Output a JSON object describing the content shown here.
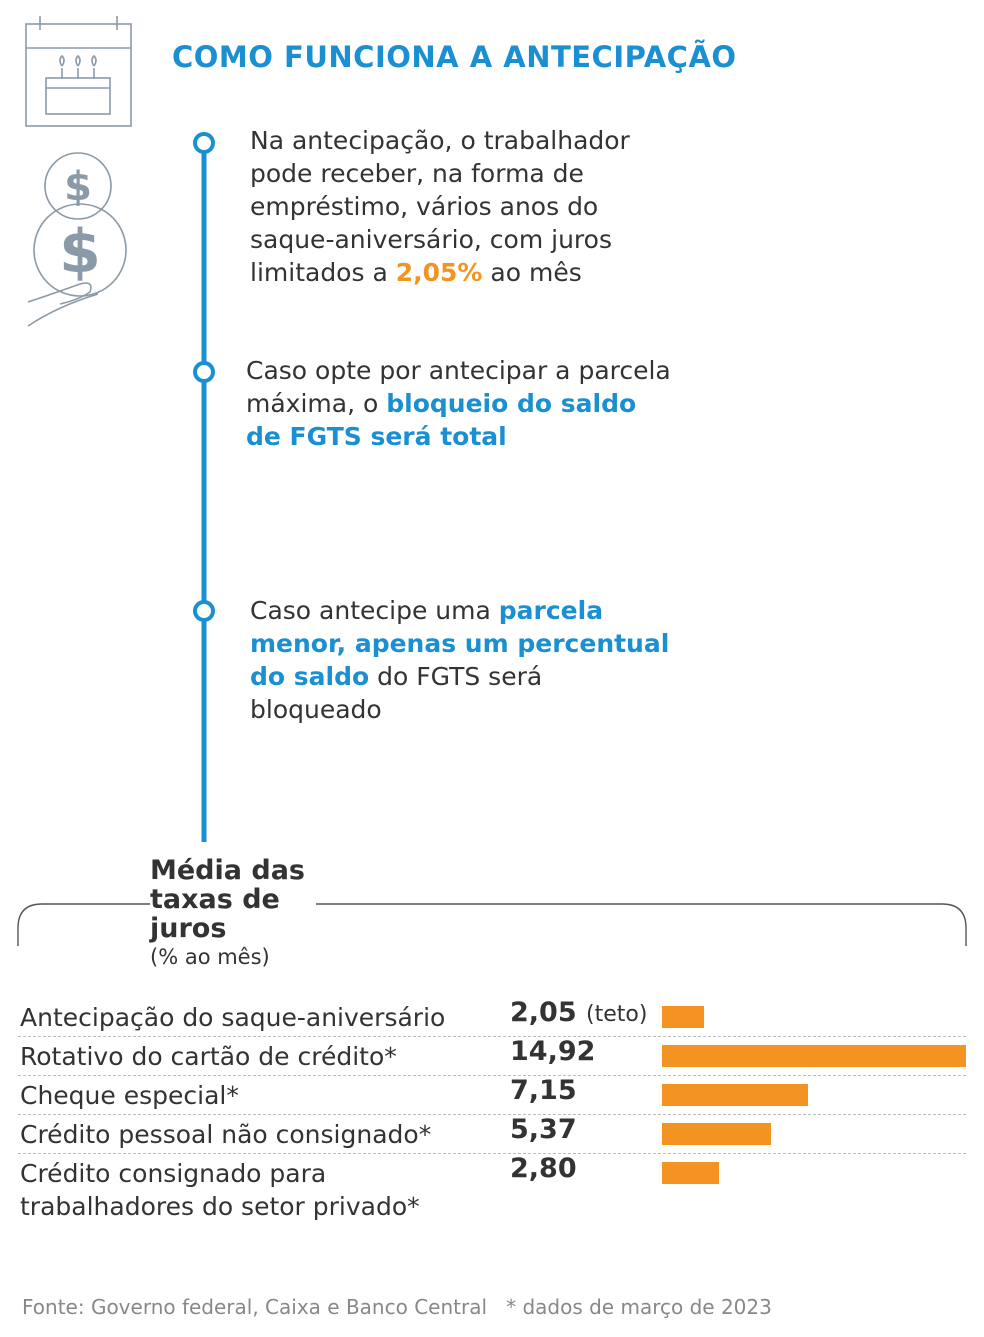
{
  "header": {
    "title": "COMO FUNCIONA A ANTECIPAÇÃO"
  },
  "steps": [
    [
      "Na antecipação, o trabalhador pode receber, na forma de empréstimo, vários anos do saque-aniversário, com juros limitados a ",
      "2,05%",
      " ao mês"
    ],
    [
      "Caso opte por antecipar a parcela máxima, o ",
      "bloqueio do saldo de FGTS será total"
    ],
    [
      "Caso antecipe uma ",
      "parcela menor, apenas um percentual do saldo",
      " do FGTS será bloqueado"
    ]
  ],
  "chart_data": {
    "type": "bar",
    "orientation": "horizontal",
    "title": "Média das taxas de juros",
    "subtitle": "(% ao mês)",
    "categories": [
      "Antecipação do saque-aniversário",
      "Rotativo do cartão de crédito*",
      "Cheque especial*",
      "Crédito pessoal não consignado*",
      "Crédito consignado para trabalhadores do setor privado*"
    ],
    "values": [
      2.05,
      14.92,
      7.15,
      5.37,
      2.8
    ],
    "value_labels": [
      "2,05",
      "14,92",
      "7,15",
      "5,37",
      "2,80"
    ],
    "annotations": [
      "(teto)"
    ],
    "color": "#f39422"
  },
  "footer": {
    "source": "Fonte: Governo federal, Caixa e Banco Central",
    "note": "* dados de março de 2023"
  }
}
